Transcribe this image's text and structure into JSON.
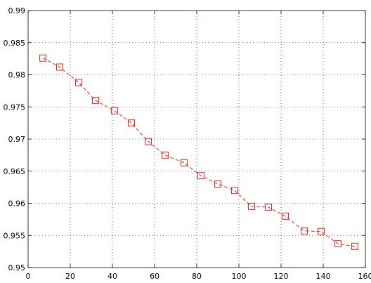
{
  "chart_data": {
    "type": "line",
    "title": "",
    "xlabel": "",
    "ylabel": "",
    "xlim": [
      0,
      160
    ],
    "ylim": [
      0.95,
      0.99
    ],
    "xticks": [
      0,
      20,
      40,
      60,
      80,
      100,
      120,
      140,
      160
    ],
    "yticks": [
      0.95,
      0.955,
      0.96,
      0.965,
      0.97,
      0.975,
      0.98,
      0.985,
      0.99
    ],
    "grid": true,
    "legend": "none",
    "series": [
      {
        "marker": "square",
        "line_style": "dashed",
        "color": "#e8291c",
        "x": [
          7,
          15,
          24,
          32,
          41,
          49,
          57,
          65,
          74,
          82,
          90,
          98,
          106,
          114,
          122,
          131,
          139,
          147,
          155
        ],
        "y": [
          0.9826,
          0.9812,
          0.9788,
          0.976,
          0.9744,
          0.9725,
          0.9696,
          0.9675,
          0.9663,
          0.9643,
          0.963,
          0.962,
          0.9595,
          0.9594,
          0.958,
          0.9557,
          0.9556,
          0.9537,
          0.9533
        ]
      }
    ]
  }
}
